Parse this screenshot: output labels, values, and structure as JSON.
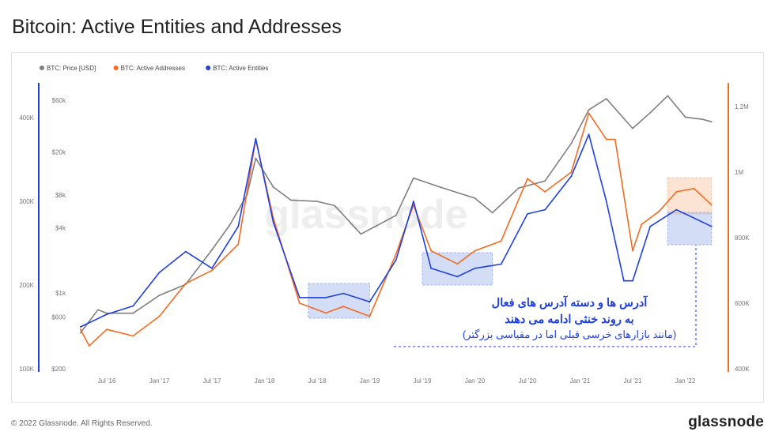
{
  "page": {
    "title": "Bitcoin: Active Entities and Addresses",
    "copyright": "© 2022 Glassnode. All Rights Reserved.",
    "brand": "glassnode",
    "watermark": "glassnode"
  },
  "colors": {
    "price": "#7f7f7f",
    "addresses": "#f26b21",
    "entities": "#1f3fdb",
    "zone_blue": "#9db3ea",
    "zone_orange": "#f7c49e",
    "annotation": "#1f3fdb"
  },
  "annotation": {
    "line1": "آدرس ها و دسته آدرس های فعال",
    "line2": "به روند خنثی ادامه می دهند",
    "line3": "(مانند بازارهای خرسی قبلی اما در مقیاسی بزرگتر)"
  },
  "chart_data": {
    "type": "line",
    "legend": [
      "BTC: Price [USD]",
      "BTC: Active Addresses",
      "BTC: Active Entities"
    ],
    "legend_position": "top-left",
    "x_ticks": [
      "Jul '16",
      "Jan '17",
      "Jul '17",
      "Jan '18",
      "Jul '18",
      "Jan '19",
      "Jul '19",
      "Jan '20",
      "Jul '20",
      "Jan '21",
      "Jul '21",
      "Jan '22"
    ],
    "axes": {
      "price_left": {
        "scale": "log",
        "ticks": [
          "$200",
          "$600",
          "$1k",
          "$4k",
          "$8k",
          "$20k",
          "$60k"
        ]
      },
      "entities_left_outer": {
        "ticks": [
          "100K",
          "200K",
          "300K",
          "400K"
        ]
      },
      "addresses_right": {
        "ticks": [
          "400K",
          "600K",
          "800K",
          "1M",
          "1.2M"
        ]
      }
    },
    "series": [
      {
        "name": "BTC: Price [USD]",
        "x": [
          "Apr '16",
          "Jun '16",
          "Jul '16",
          "Oct '16",
          "Jan '17",
          "Apr '17",
          "Jul '17",
          "Sep '17",
          "Nov '17",
          "Dec '17",
          "Feb '18",
          "Apr '18",
          "Jul '18",
          "Sep '18",
          "Dec '18",
          "Apr '19",
          "Jun '19",
          "Sep '19",
          "Jan '20",
          "Mar '20",
          "Jun '20",
          "Sep '20",
          "Dec '20",
          "Feb '21",
          "Apr '21",
          "Jul '21",
          "Sep '21",
          "Nov '21",
          "Jan '22",
          "Mar '22",
          "Apr '22"
        ],
        "values": [
          430,
          700,
          650,
          650,
          950,
          1200,
          2500,
          4200,
          8000,
          17500,
          9500,
          7200,
          7000,
          6400,
          3500,
          5200,
          11500,
          9500,
          7500,
          5500,
          9300,
          10800,
          24000,
          49000,
          62000,
          33000,
          46000,
          66000,
          42000,
          40000,
          38000
        ]
      },
      {
        "name": "BTC: Active Addresses",
        "x": [
          "Apr '16",
          "May '16",
          "Jul '16",
          "Oct '16",
          "Jan '17",
          "Apr '17",
          "Jul '17",
          "Oct '17",
          "Dec '17",
          "Feb '18",
          "May '18",
          "Aug '18",
          "Oct '18",
          "Jan '19",
          "Apr '19",
          "Jun '19",
          "Aug '19",
          "Nov '19",
          "Jan '20",
          "Apr '20",
          "Jul '20",
          "Sep '20",
          "Dec '20",
          "Feb '21",
          "Apr '21",
          "May '21",
          "Jul '21",
          "Aug '21",
          "Oct '21",
          "Dec '21",
          "Feb '22",
          "Apr '22"
        ],
        "values": [
          520000,
          470000,
          520000,
          500000,
          560000,
          660000,
          700000,
          780000,
          1100000,
          860000,
          600000,
          570000,
          590000,
          560000,
          750000,
          900000,
          760000,
          720000,
          760000,
          790000,
          980000,
          940000,
          1000000,
          1180000,
          1100000,
          1100000,
          760000,
          840000,
          880000,
          940000,
          950000,
          900000
        ]
      },
      {
        "name": "BTC: Active Entities",
        "x": [
          "Apr '16",
          "Jul '16",
          "Oct '16",
          "Jan '17",
          "Apr '17",
          "Jul '17",
          "Oct '17",
          "Dec '17",
          "Feb '18",
          "May '18",
          "Aug '18",
          "Oct '18",
          "Jan '19",
          "Apr '19",
          "Jun '19",
          "Aug '19",
          "Nov '19",
          "Jan '20",
          "Apr '20",
          "Jul '20",
          "Sep '20",
          "Dec '20",
          "Feb '21",
          "Apr '21",
          "Jun '21",
          "Jul '21",
          "Sep '21",
          "Dec '21",
          "Feb '22",
          "Apr '22"
        ],
        "values": [
          150000,
          165000,
          175000,
          215000,
          240000,
          220000,
          270000,
          375000,
          275000,
          185000,
          185000,
          190000,
          180000,
          230000,
          300000,
          220000,
          210000,
          220000,
          225000,
          285000,
          290000,
          330000,
          380000,
          300000,
          205000,
          205000,
          270000,
          290000,
          280000,
          270000
        ]
      }
    ],
    "zones": [
      {
        "x_range": [
          "Jun '18",
          "Jan '19"
        ],
        "color": "blue"
      },
      {
        "x_range": [
          "Jul '19",
          "Mar '20"
        ],
        "color": "blue"
      },
      {
        "x_range": [
          "Nov '21",
          "Apr '22"
        ],
        "color": "blue"
      },
      {
        "x_range": [
          "Nov '21",
          "Apr '22"
        ],
        "color": "orange"
      }
    ]
  }
}
